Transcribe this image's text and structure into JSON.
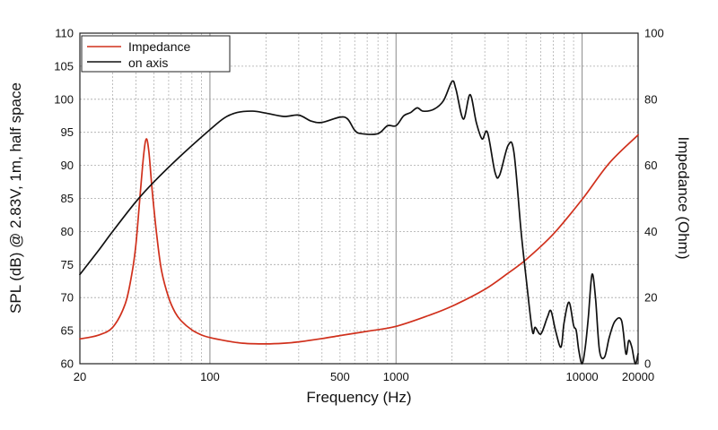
{
  "chart_data": {
    "type": "line",
    "xlabel": "Frequency (Hz)",
    "ylabel_left": "SPL (dB) @ 2.83V, 1m, half space",
    "ylabel_right": "Impedance (Ohm)",
    "x_scale": "log",
    "xlim": [
      20,
      20000
    ],
    "ylim_left": [
      60,
      110
    ],
    "ylim_right": [
      0,
      100
    ],
    "x_ticks": [
      20,
      100,
      500,
      1000,
      10000,
      20000
    ],
    "x_tick_labels": [
      "20",
      "100",
      "500",
      "1000",
      "10000",
      "20000"
    ],
    "y_ticks_left": [
      60,
      65,
      70,
      75,
      80,
      85,
      90,
      95,
      100,
      105,
      110
    ],
    "y_ticks_right": [
      0,
      20,
      40,
      60,
      80,
      100
    ],
    "grid": true,
    "legend_position": "top-left",
    "series": [
      {
        "name": "Impedance",
        "axis": "right",
        "color": "#d0301c",
        "points": [
          [
            20,
            7.5
          ],
          [
            25,
            8.6
          ],
          [
            30,
            11
          ],
          [
            35,
            18
          ],
          [
            38,
            27
          ],
          [
            40,
            36
          ],
          [
            42,
            50
          ],
          [
            44,
            63
          ],
          [
            45.5,
            68
          ],
          [
            47,
            64
          ],
          [
            49,
            52
          ],
          [
            52,
            38
          ],
          [
            55,
            28
          ],
          [
            60,
            20
          ],
          [
            65,
            15.5
          ],
          [
            70,
            13
          ],
          [
            80,
            10.2
          ],
          [
            90,
            8.7
          ],
          [
            100,
            7.9
          ],
          [
            120,
            7
          ],
          [
            150,
            6.2
          ],
          [
            200,
            6
          ],
          [
            250,
            6.2
          ],
          [
            300,
            6.6
          ],
          [
            400,
            7.6
          ],
          [
            500,
            8.5
          ],
          [
            700,
            9.8
          ],
          [
            1000,
            11.3
          ],
          [
            1500,
            14.6
          ],
          [
            2000,
            17.4
          ],
          [
            3000,
            22.5
          ],
          [
            4000,
            27.4
          ],
          [
            5000,
            31.5
          ],
          [
            7000,
            39.2
          ],
          [
            10000,
            49.7
          ],
          [
            14000,
            60.7
          ],
          [
            20000,
            69.2
          ]
        ]
      },
      {
        "name": "on axis",
        "axis": "left",
        "color": "#111111",
        "points": [
          [
            20,
            73.5
          ],
          [
            25,
            77
          ],
          [
            30,
            80
          ],
          [
            40,
            84.5
          ],
          [
            50,
            87.5
          ],
          [
            70,
            91.5
          ],
          [
            100,
            95.4
          ],
          [
            120,
            97.2
          ],
          [
            140,
            98
          ],
          [
            170,
            98.2
          ],
          [
            200,
            97.9
          ],
          [
            250,
            97.4
          ],
          [
            300,
            97.6
          ],
          [
            350,
            96.7
          ],
          [
            400,
            96.5
          ],
          [
            500,
            97.3
          ],
          [
            550,
            97
          ],
          [
            600,
            95.3
          ],
          [
            650,
            94.8
          ],
          [
            800,
            94.8
          ],
          [
            900,
            96
          ],
          [
            1000,
            96
          ],
          [
            1100,
            97.5
          ],
          [
            1200,
            98
          ],
          [
            1300,
            98.7
          ],
          [
            1400,
            98.2
          ],
          [
            1600,
            98.5
          ],
          [
            1800,
            99.8
          ],
          [
            2000,
            102.7
          ],
          [
            2100,
            101.5
          ],
          [
            2300,
            97
          ],
          [
            2500,
            100.7
          ],
          [
            2700,
            96.5
          ],
          [
            2900,
            94
          ],
          [
            3100,
            95
          ],
          [
            3400,
            89
          ],
          [
            3600,
            88.5
          ],
          [
            4000,
            93
          ],
          [
            4300,
            92
          ],
          [
            4700,
            80
          ],
          [
            5000,
            73
          ],
          [
            5400,
            65
          ],
          [
            5600,
            65.5
          ],
          [
            6000,
            64.5
          ],
          [
            6500,
            67
          ],
          [
            6800,
            68
          ],
          [
            7200,
            65
          ],
          [
            7700,
            62.5
          ],
          [
            8000,
            66.2
          ],
          [
            8500,
            69.3
          ],
          [
            9000,
            65.8
          ],
          [
            9300,
            65
          ],
          [
            9600,
            62
          ],
          [
            10000,
            60
          ],
          [
            10400,
            62.5
          ],
          [
            10800,
            67
          ],
          [
            11300,
            73.5
          ],
          [
            11800,
            70
          ],
          [
            12400,
            62
          ],
          [
            13200,
            61
          ],
          [
            14000,
            64
          ],
          [
            15000,
            66.4
          ],
          [
            16300,
            66.5
          ],
          [
            17200,
            61.5
          ],
          [
            17800,
            63.5
          ],
          [
            18500,
            62.5
          ],
          [
            19300,
            60
          ],
          [
            20000,
            61.5
          ]
        ]
      }
    ]
  }
}
